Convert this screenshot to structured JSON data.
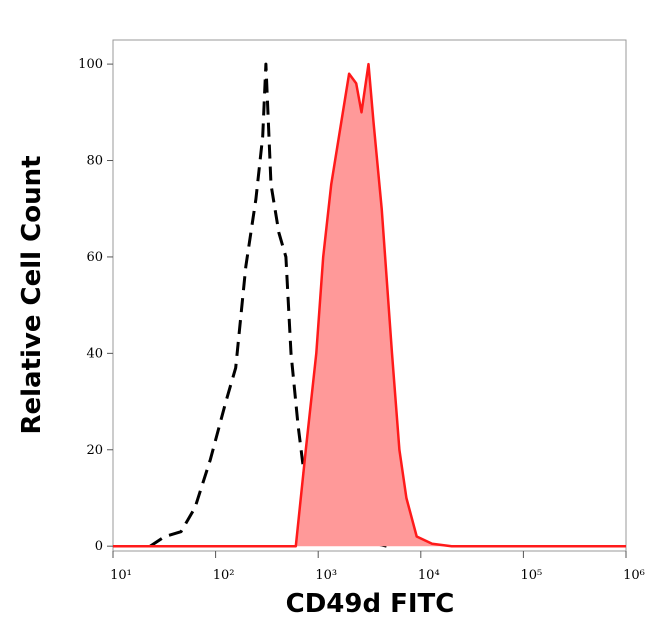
{
  "chart_data": {
    "type": "histogram-overlay",
    "xlabel": "CD49d FITC",
    "ylabel": "Relative Cell Count",
    "xscale": "log",
    "xlim": [
      10,
      1000000
    ],
    "ylim": [
      -1,
      105
    ],
    "xticks": [
      {
        "value": 10,
        "label": "10¹"
      },
      {
        "value": 100,
        "label": "10²"
      },
      {
        "value": 1000,
        "label": "10³"
      },
      {
        "value": 10000,
        "label": "10⁴"
      },
      {
        "value": 100000,
        "label": "10⁵"
      },
      {
        "value": 1000000,
        "label": "10⁶"
      }
    ],
    "yticks": [
      0,
      20,
      40,
      60,
      80,
      100
    ],
    "series": [
      {
        "color": "#000000",
        "dashed": true,
        "filled": false,
        "x": [
          23,
          32,
          46,
          63,
          89,
          126,
          157,
          197,
          247,
          288,
          309,
          347,
          414,
          484,
          543,
          637,
          729,
          856,
          1072,
          1507,
          2113,
          2946,
          4655
        ],
        "values": [
          0,
          2,
          3,
          8,
          18,
          30,
          37,
          58,
          72,
          85,
          100,
          75,
          65,
          60,
          40,
          25,
          15,
          8,
          5,
          4,
          2,
          1,
          0
        ]
      },
      {
        "color": "#ff1a1a",
        "fill": "#ff9999",
        "dashed": false,
        "filled": true,
        "x": [
          10,
          605,
          757,
          958,
          1120,
          1340,
          1680,
          2000,
          2345,
          2640,
          3090,
          3460,
          4160,
          5240,
          6190,
          7240,
          9120,
          12900,
          19950,
          1000000
        ],
        "values": [
          0,
          0,
          20,
          40,
          60,
          75,
          88,
          98,
          96,
          90,
          100,
          88,
          70,
          40,
          20,
          10,
          2,
          0.5,
          0,
          0
        ]
      }
    ]
  }
}
